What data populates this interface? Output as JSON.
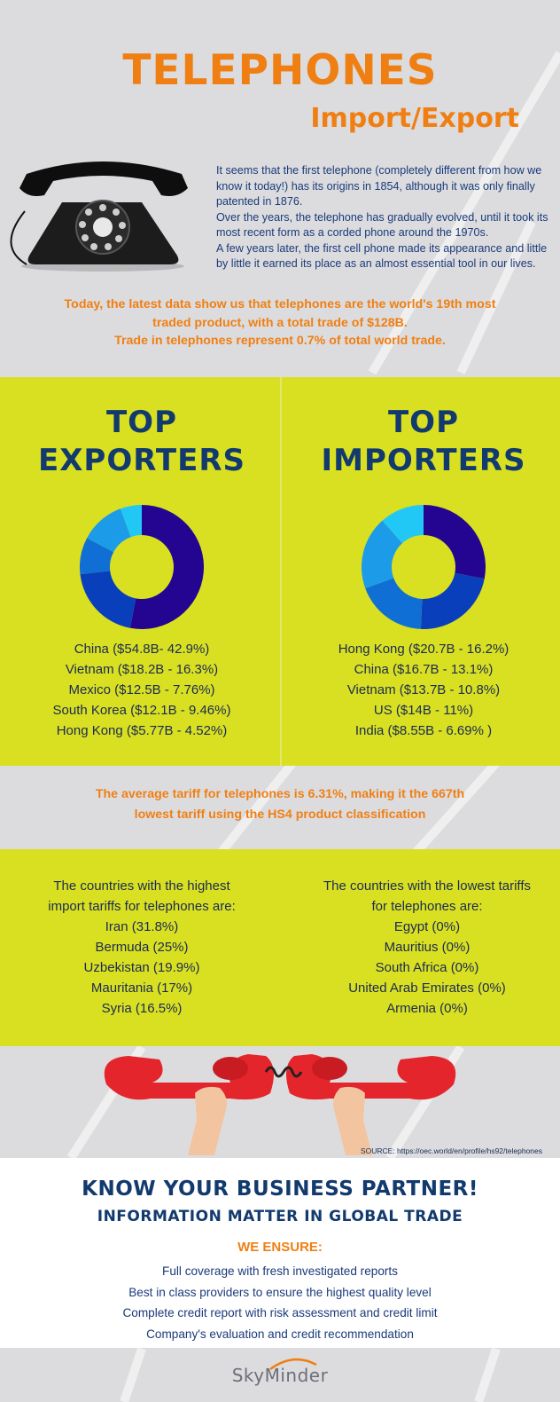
{
  "header": {
    "title": "TELEPHONES",
    "subtitle": "Import/Export",
    "intro": [
      "It seems that the first telephone (completely different from how we know it today!) has its origins in 1854, although it was only finally patented in 1876.",
      "Over the years, the telephone has gradually evolved, until it took its most recent form as a corded phone around the 1970s.",
      "A few years later, the first cell phone made its appearance and little by little it earned its place as an almost essential tool in our lives."
    ],
    "highlight": [
      "Today, the latest data show us that telephones are the world's 19th most",
      "traded product, with a total trade of $128B.",
      "Trade in telephones represent 0.7% of total world trade."
    ]
  },
  "exporters": {
    "heading_line1": "TOP",
    "heading_line2": "EXPORTERS",
    "items": [
      "China ($54.8B- 42.9%)",
      "Vietnam ($18.2B - 16.3%)",
      "Mexico ($12.5B - 7.76%)",
      "South Korea ($12.1B - 9.46%)",
      "Hong Kong ($5.77B - 4.52%)"
    ]
  },
  "importers": {
    "heading_line1": "TOP",
    "heading_line2": "IMPORTERS",
    "items": [
      "Hong Kong ($20.7B - 16.2%)",
      "China ($16.7B - 13.1%)",
      "Vietnam ($13.7B - 10.8%)",
      "US ($14B - 11%)",
      "India ($8.55B - 6.69% )"
    ]
  },
  "chart_data": [
    {
      "type": "pie",
      "donut": true,
      "categories": [
        "China",
        "Vietnam",
        "Mexico",
        "South Korea",
        "Hong Kong"
      ],
      "values": [
        42.9,
        16.3,
        7.76,
        9.46,
        4.52
      ],
      "colors": [
        "#230591",
        "#0a3fbc",
        "#0f6fd4",
        "#1b9be8",
        "#22c8f5"
      ]
    },
    {
      "type": "pie",
      "donut": true,
      "categories": [
        "Hong Kong",
        "China",
        "Vietnam",
        "US",
        "India"
      ],
      "values": [
        16.2,
        13.1,
        10.8,
        11,
        6.69
      ],
      "colors": [
        "#230591",
        "#0a3fbc",
        "#0f6fd4",
        "#1b9be8",
        "#22c8f5"
      ]
    }
  ],
  "tariff": {
    "line1": "The average tariff for telephones is 6.31%, making it the 667th",
    "line2": "lowest tariff using the HS4 product classification"
  },
  "highest_tariffs": {
    "intro_line1": "The countries with the highest",
    "intro_line2": "import tariffs for telephones are:",
    "items": [
      "Iran (31.8%)",
      "Bermuda (25%)",
      "Uzbekistan (19.9%)",
      "Mauritania (17%)",
      "Syria (16.5%)"
    ]
  },
  "lowest_tariffs": {
    "intro_line1": "The countries with the lowest tariffs",
    "intro_line2": "for telephones are:",
    "items": [
      "Egypt (0%)",
      "Mauritius (0%)",
      "South Africa (0%)",
      "United Arab Emirates (0%)",
      "Armenia (0%)"
    ]
  },
  "source": "SOURCE: https://oec.world/en/profile/hs92/telephones",
  "promo": {
    "headline": "KNOW YOUR BUSINESS PARTNER!",
    "subheadline": "INFORMATION MATTER IN GLOBAL TRADE",
    "ensure": "WE  ENSURE:",
    "benefits": [
      "Full coverage with fresh investigated reports",
      "Best in class providers to ensure the highest quality level",
      "Complete credit report with risk assessment and credit limit",
      "Company's evaluation and credit recommendation"
    ]
  },
  "footer": {
    "logo_text": "SkyMinder"
  },
  "icons": {
    "phone": "rotary-telephone-icon",
    "hands": "hands-holding-phone-receivers-icon",
    "logo": "skyminder-logo-icon"
  },
  "colors": {
    "accent": "#f07f13",
    "navy": "#123a6e",
    "green": "#d9e021"
  }
}
